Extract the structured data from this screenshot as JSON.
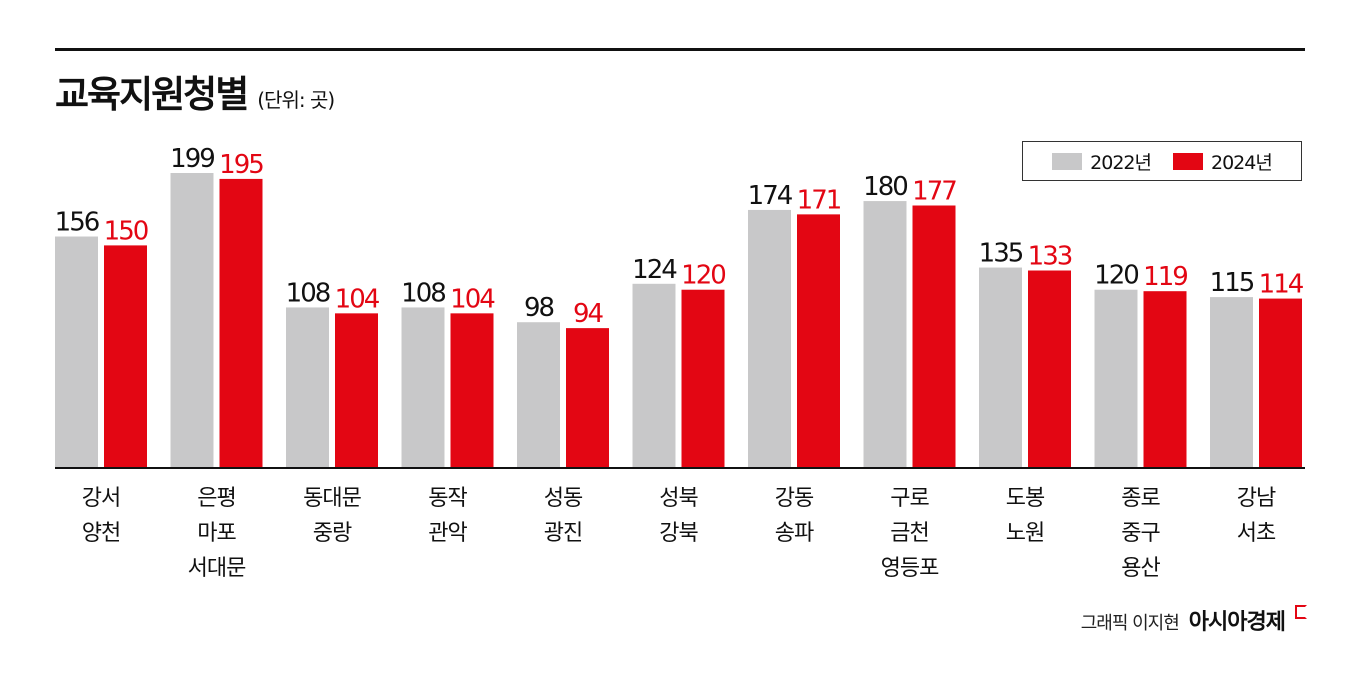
{
  "header": {
    "title": "교육지원청별",
    "unit": "(단위: 곳)"
  },
  "legend": {
    "items": [
      {
        "label": "2022년",
        "color": "#c8c8c9"
      },
      {
        "label": "2024년",
        "color": "#e30613"
      }
    ]
  },
  "colors": {
    "value_2022": "#111111",
    "value_2024": "#e30613"
  },
  "credit": {
    "text": "그래픽 이지현",
    "brand": "아시아경제"
  },
  "chart_data": {
    "type": "bar",
    "title": "교육지원청별",
    "unit": "곳",
    "categories": [
      [
        "강서",
        "양천"
      ],
      [
        "은평",
        "마포",
        "서대문"
      ],
      [
        "동대문",
        "중랑"
      ],
      [
        "동작",
        "관악"
      ],
      [
        "성동",
        "광진"
      ],
      [
        "성북",
        "강북"
      ],
      [
        "강동",
        "송파"
      ],
      [
        "구로",
        "금천",
        "영등포"
      ],
      [
        "도봉",
        "노원"
      ],
      [
        "종로",
        "중구",
        "용산"
      ],
      [
        "강남",
        "서초"
      ]
    ],
    "series": [
      {
        "name": "2022년",
        "color": "#c8c8c9",
        "values": [
          156,
          199,
          108,
          108,
          98,
          124,
          174,
          180,
          135,
          120,
          115
        ]
      },
      {
        "name": "2024년",
        "color": "#e30613",
        "values": [
          150,
          195,
          104,
          104,
          94,
          120,
          171,
          177,
          133,
          119,
          114
        ]
      }
    ],
    "ylim": [
      0,
      199
    ],
    "grid": false,
    "legend_position": "top-right"
  }
}
